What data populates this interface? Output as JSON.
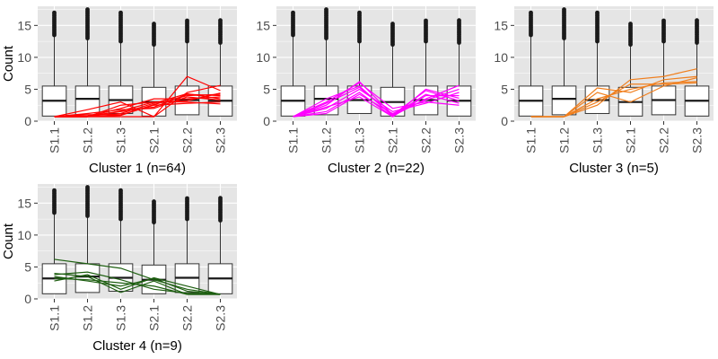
{
  "chart_data": [
    {
      "type": "box",
      "title": "Cluster 1 (n=64)",
      "ylabel": "Count",
      "categories": [
        "S1.1",
        "S1.2",
        "S1.3",
        "S2.1",
        "S2.2",
        "S2.3"
      ],
      "ylim": [
        0,
        18
      ],
      "yticks": [
        0,
        5,
        10,
        15
      ],
      "grid": true,
      "line_color": "#ff0000",
      "boxes": [
        {
          "q1": 0.8,
          "median": 3.2,
          "q3": 5.5,
          "whisker_high": 13.5,
          "max": 17.0
        },
        {
          "q1": 1.0,
          "median": 3.5,
          "q3": 5.5,
          "whisker_high": 13.0,
          "max": 17.5
        },
        {
          "q1": 1.2,
          "median": 3.3,
          "q3": 5.5,
          "whisker_high": 12.5,
          "max": 17.0
        },
        {
          "q1": 0.8,
          "median": 3.0,
          "q3": 5.3,
          "whisker_high": 12.0,
          "max": 15.3
        },
        {
          "q1": 1.0,
          "median": 3.3,
          "q3": 5.5,
          "whisker_high": 12.5,
          "max": 15.8
        },
        {
          "q1": 0.8,
          "median": 3.2,
          "q3": 5.5,
          "whisker_high": 12.3,
          "max": 16.0
        }
      ],
      "lines": [
        [
          0.7,
          0.7,
          0.7,
          0.7,
          7.0,
          4.8
        ],
        [
          0.7,
          1.8,
          3.0,
          0.7,
          4.5,
          5.6
        ],
        [
          0.7,
          0.8,
          1.5,
          2.2,
          4.2,
          4.0
        ],
        [
          0.7,
          0.8,
          1.2,
          2.8,
          4.3,
          3.5
        ],
        [
          0.7,
          0.7,
          2.0,
          3.5,
          3.5,
          3.8
        ],
        [
          0.7,
          1.0,
          1.0,
          2.5,
          2.8,
          3.0
        ],
        [
          0.7,
          0.7,
          2.5,
          3.0,
          3.2,
          4.4
        ],
        [
          0.7,
          1.2,
          1.8,
          2.0,
          3.8,
          3.3
        ],
        [
          0.7,
          0.7,
          0.9,
          2.6,
          4.0,
          4.2
        ],
        [
          0.7,
          0.7,
          1.6,
          3.0,
          3.0,
          2.7
        ]
      ]
    },
    {
      "type": "box",
      "title": "Cluster 2 (n=22)",
      "ylabel": "",
      "categories": [
        "S1.1",
        "S1.2",
        "S1.3",
        "S2.1",
        "S2.2",
        "S2.3"
      ],
      "ylim": [
        0,
        18
      ],
      "yticks": [
        0,
        5,
        10,
        15
      ],
      "grid": true,
      "line_color": "#ff00ff",
      "boxes": [
        {
          "q1": 0.8,
          "median": 3.2,
          "q3": 5.5,
          "whisker_high": 13.5,
          "max": 17.0
        },
        {
          "q1": 1.0,
          "median": 3.5,
          "q3": 5.5,
          "whisker_high": 13.0,
          "max": 17.5
        },
        {
          "q1": 1.2,
          "median": 3.3,
          "q3": 5.5,
          "whisker_high": 12.5,
          "max": 17.0
        },
        {
          "q1": 0.8,
          "median": 3.0,
          "q3": 5.3,
          "whisker_high": 12.0,
          "max": 15.3
        },
        {
          "q1": 1.0,
          "median": 3.3,
          "q3": 5.5,
          "whisker_high": 12.5,
          "max": 15.8
        },
        {
          "q1": 0.8,
          "median": 3.2,
          "q3": 5.5,
          "whisker_high": 12.3,
          "max": 16.0
        }
      ],
      "lines": [
        [
          0.7,
          2.5,
          6.2,
          1.0,
          4.8,
          3.2
        ],
        [
          0.7,
          3.5,
          5.5,
          0.8,
          3.5,
          5.6
        ],
        [
          0.7,
          2.0,
          5.0,
          1.5,
          2.8,
          4.5
        ],
        [
          0.7,
          1.5,
          4.5,
          0.7,
          4.0,
          4.0
        ],
        [
          0.7,
          3.0,
          6.0,
          2.0,
          3.0,
          2.5
        ],
        [
          0.7,
          2.2,
          3.8,
          0.7,
          5.0,
          3.6
        ],
        [
          0.7,
          1.2,
          4.2,
          1.2,
          3.3,
          5.0
        ],
        [
          0.7,
          2.8,
          5.3,
          0.9,
          4.2,
          2.8
        ]
      ]
    },
    {
      "type": "box",
      "title": "Cluster 3 (n=5)",
      "ylabel": "",
      "categories": [
        "S1.1",
        "S1.2",
        "S1.3",
        "S2.1",
        "S2.2",
        "S2.3"
      ],
      "ylim": [
        0,
        18
      ],
      "yticks": [
        0,
        5,
        10,
        15
      ],
      "grid": true,
      "line_color": "#f07f1e",
      "boxes": [
        {
          "q1": 0.8,
          "median": 3.2,
          "q3": 5.5,
          "whisker_high": 13.5,
          "max": 17.0
        },
        {
          "q1": 1.0,
          "median": 3.5,
          "q3": 5.5,
          "whisker_high": 13.0,
          "max": 17.5
        },
        {
          "q1": 1.2,
          "median": 3.3,
          "q3": 5.5,
          "whisker_high": 12.5,
          "max": 17.0
        },
        {
          "q1": 0.8,
          "median": 3.0,
          "q3": 5.3,
          "whisker_high": 12.0,
          "max": 15.3
        },
        {
          "q1": 1.0,
          "median": 3.3,
          "q3": 5.5,
          "whisker_high": 12.5,
          "max": 15.8
        },
        {
          "q1": 0.8,
          "median": 3.2,
          "q3": 5.5,
          "whisker_high": 12.3,
          "max": 16.0
        }
      ],
      "lines": [
        [
          0.7,
          0.7,
          2.5,
          6.5,
          7.0,
          8.2
        ],
        [
          0.7,
          0.7,
          3.5,
          5.0,
          6.0,
          6.2
        ],
        [
          0.7,
          0.7,
          4.5,
          3.0,
          5.5,
          6.8
        ],
        [
          0.7,
          0.7,
          5.2,
          4.5,
          6.5,
          7.0
        ],
        [
          0.7,
          0.7,
          3.0,
          5.8,
          5.8,
          6.0
        ]
      ]
    },
    {
      "type": "box",
      "title": "Cluster 4 (n=9)",
      "ylabel": "Count",
      "categories": [
        "S1.1",
        "S1.2",
        "S1.3",
        "S2.1",
        "S2.2",
        "S2.3"
      ],
      "ylim": [
        0,
        18
      ],
      "yticks": [
        0,
        5,
        10,
        15
      ],
      "grid": true,
      "line_color": "#1d5e10",
      "boxes": [
        {
          "q1": 0.8,
          "median": 3.2,
          "q3": 5.5,
          "whisker_high": 13.5,
          "max": 17.0
        },
        {
          "q1": 1.0,
          "median": 3.5,
          "q3": 5.5,
          "whisker_high": 13.0,
          "max": 17.5
        },
        {
          "q1": 1.2,
          "median": 3.3,
          "q3": 5.5,
          "whisker_high": 12.5,
          "max": 17.0
        },
        {
          "q1": 0.8,
          "median": 3.0,
          "q3": 5.3,
          "whisker_high": 12.0,
          "max": 15.3
        },
        {
          "q1": 1.0,
          "median": 3.3,
          "q3": 5.5,
          "whisker_high": 12.5,
          "max": 15.8
        },
        {
          "q1": 0.8,
          "median": 3.2,
          "q3": 5.5,
          "whisker_high": 12.3,
          "max": 16.0
        }
      ],
      "lines": [
        [
          6.2,
          5.5,
          4.8,
          3.0,
          1.5,
          0.7
        ],
        [
          4.0,
          3.5,
          1.0,
          2.8,
          0.7,
          0.7
        ],
        [
          3.5,
          2.8,
          2.0,
          3.2,
          1.2,
          0.7
        ],
        [
          3.8,
          4.2,
          3.0,
          1.5,
          0.9,
          0.7
        ],
        [
          2.8,
          3.8,
          1.5,
          3.3,
          2.0,
          0.7
        ],
        [
          3.2,
          3.0,
          2.5,
          2.0,
          0.7,
          0.7
        ]
      ]
    }
  ]
}
